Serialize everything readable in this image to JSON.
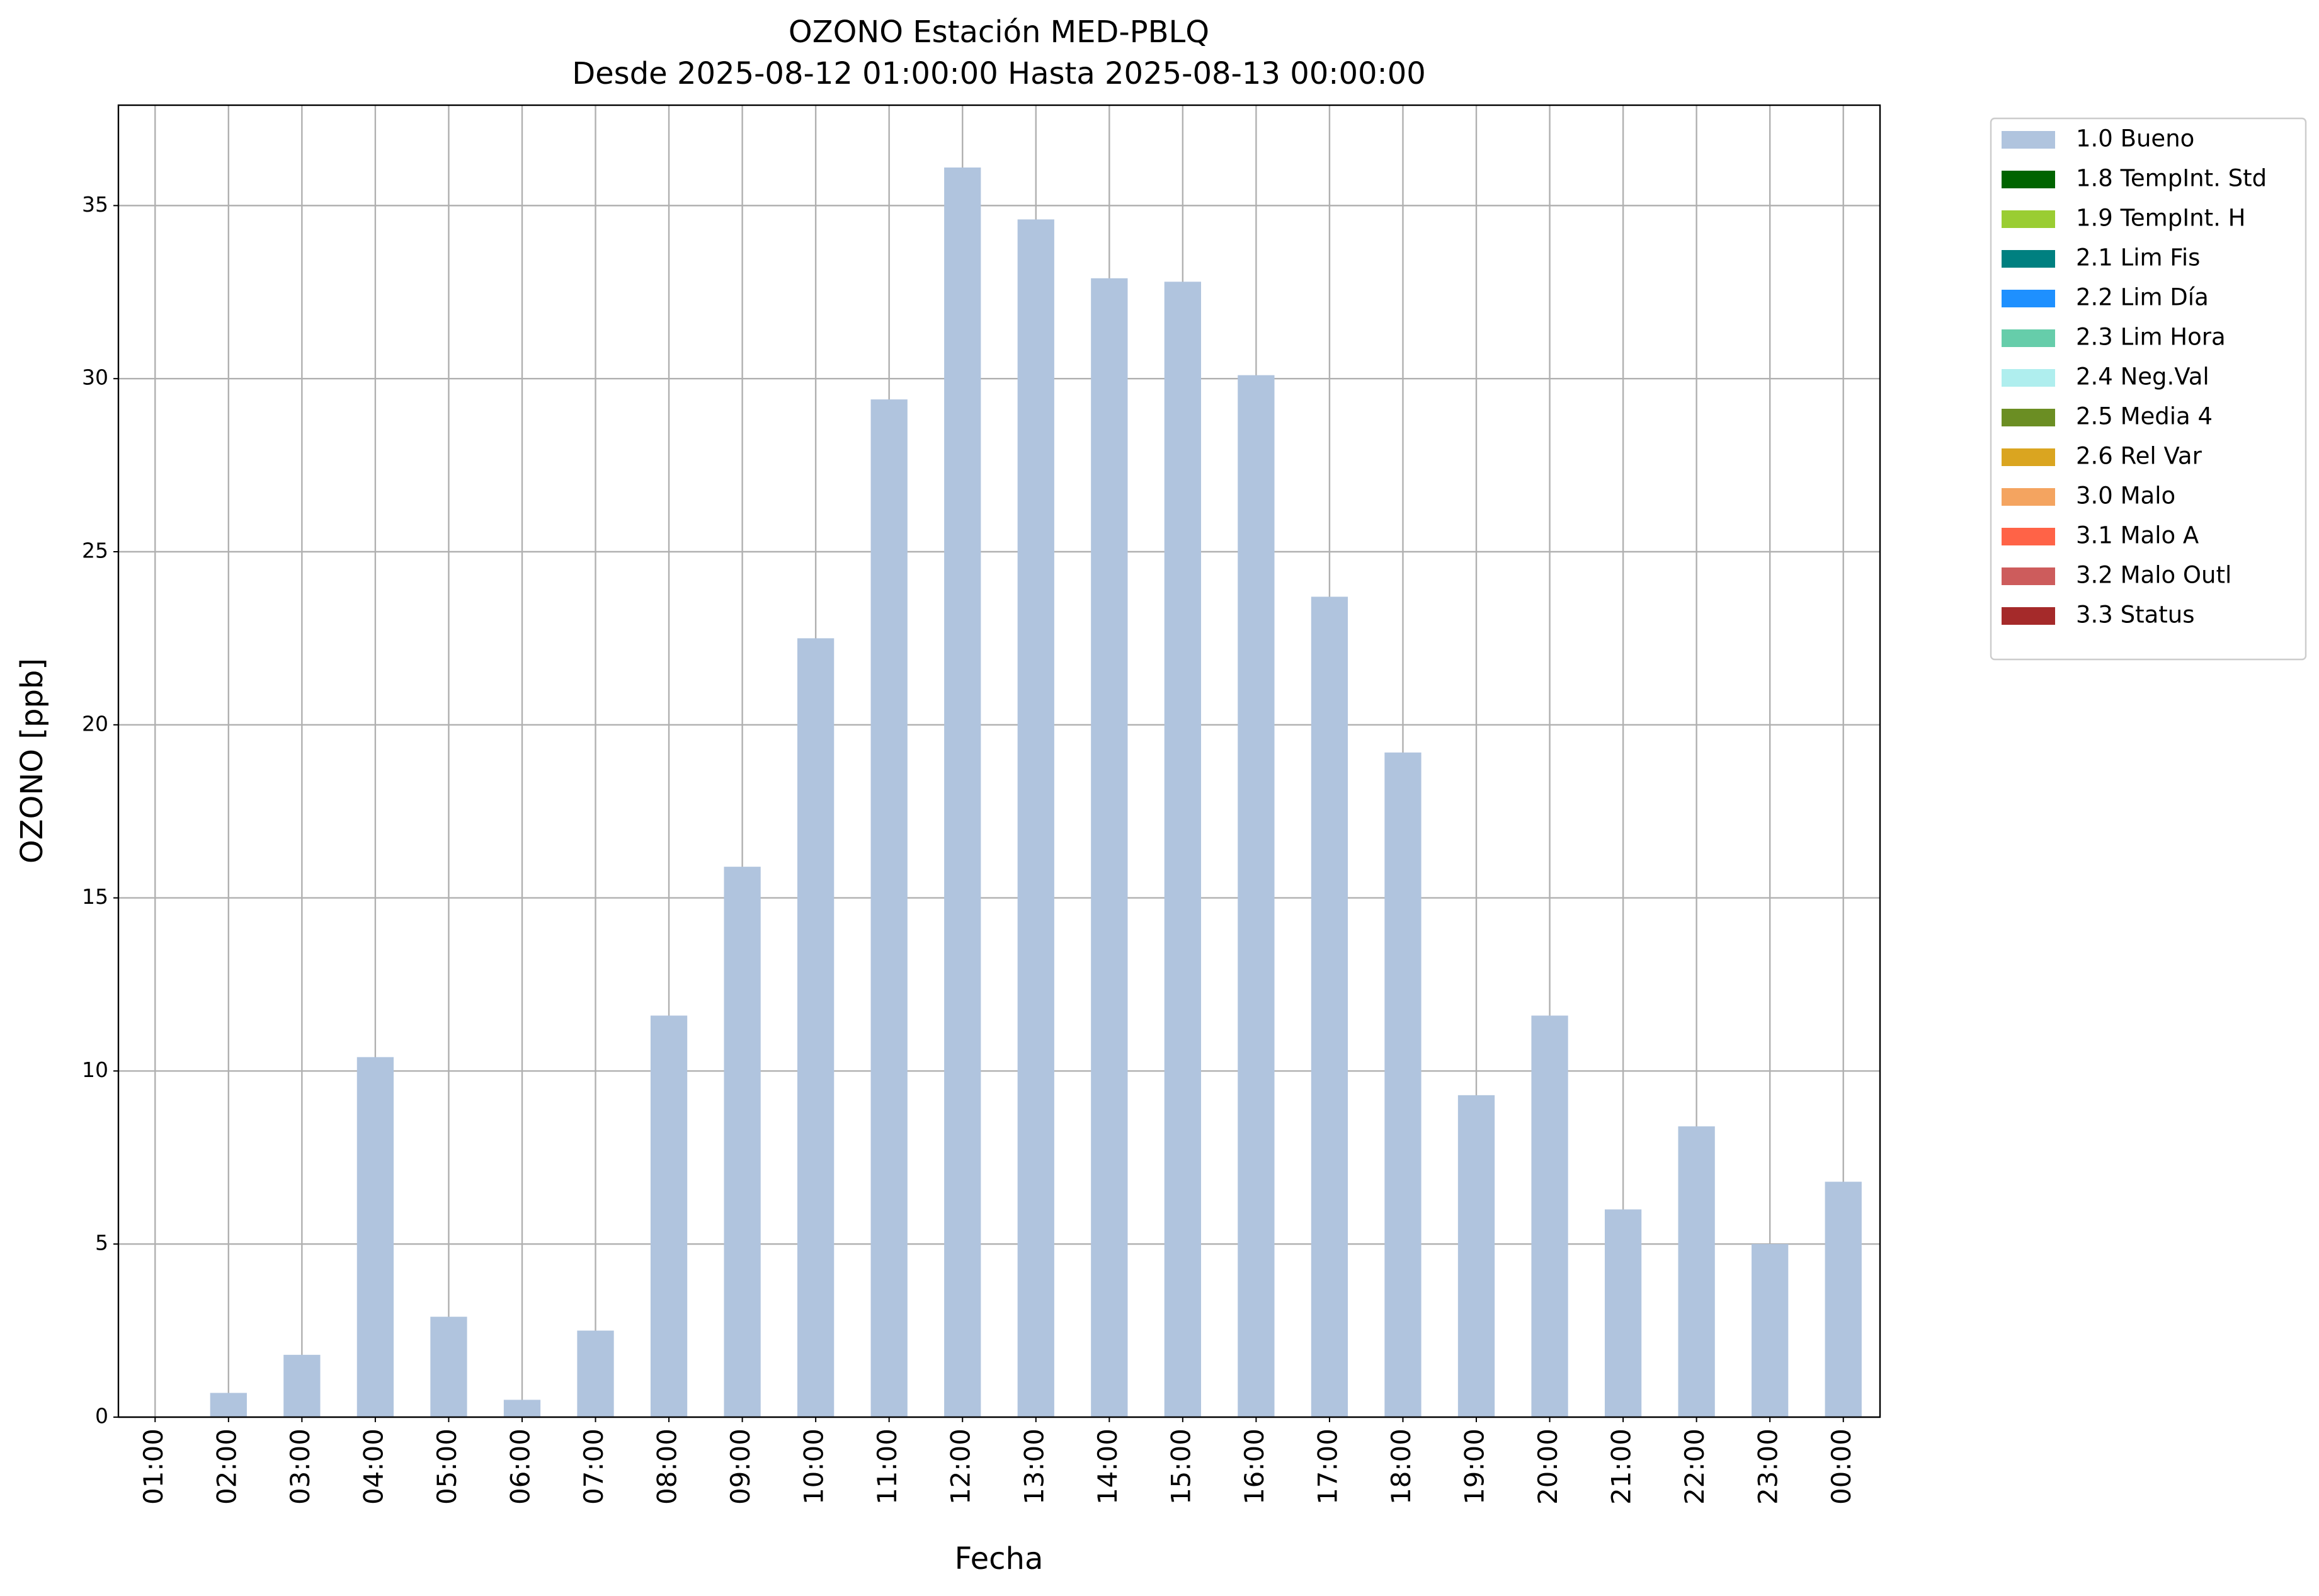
{
  "chart_data": {
    "type": "bar",
    "stacked": true,
    "title": "OZONO Estación MED-PBLQ",
    "subtitle": "Desde 2025-08-12 01:00:00 Hasta 2025-08-13 00:00:00",
    "x_label": "Fecha",
    "y_label": "OZONO [ppb]",
    "categories": [
      "01:00",
      "02:00",
      "03:00",
      "04:00",
      "05:00",
      "06:00",
      "07:00",
      "08:00",
      "09:00",
      "10:00",
      "11:00",
      "12:00",
      "13:00",
      "14:00",
      "15:00",
      "16:00",
      "17:00",
      "18:00",
      "19:00",
      "20:00",
      "21:00",
      "22:00",
      "23:00",
      "00:00"
    ],
    "series": [
      {
        "name": "1.0 Bueno",
        "color": "#b0c4de",
        "values": [
          0,
          0.7,
          1.8,
          10.4,
          2.9,
          0.5,
          2.5,
          11.6,
          15.9,
          22.5,
          29.4,
          36.1,
          34.6,
          32.9,
          32.8,
          30.1,
          23.7,
          19.2,
          9.3,
          11.6,
          6.0,
          8.4,
          5.0,
          6.8
        ]
      },
      {
        "name": "1.8 TempInt. Std",
        "color": "#006400",
        "values": [
          0,
          0,
          0,
          0,
          0,
          0,
          0,
          0,
          0,
          0,
          0,
          0,
          0,
          0,
          0,
          0,
          0,
          0,
          0,
          0,
          0,
          0,
          0,
          0
        ]
      },
      {
        "name": "1.9 TempInt. H",
        "color": "#9acd32",
        "values": [
          0,
          0,
          0,
          0,
          0,
          0,
          0,
          0,
          0,
          0,
          0,
          0,
          0,
          0,
          0,
          0,
          0,
          0,
          0,
          0,
          0,
          0,
          0,
          0
        ]
      },
      {
        "name": "2.1 Lim Fis",
        "color": "#008080",
        "values": [
          0,
          0,
          0,
          0,
          0,
          0,
          0,
          0,
          0,
          0,
          0,
          0,
          0,
          0,
          0,
          0,
          0,
          0,
          0,
          0,
          0,
          0,
          0,
          0
        ]
      },
      {
        "name": "2.2 Lim Día",
        "color": "#1e90ff",
        "values": [
          0,
          0,
          0,
          0,
          0,
          0,
          0,
          0,
          0,
          0,
          0,
          0,
          0,
          0,
          0,
          0,
          0,
          0,
          0,
          0,
          0,
          0,
          0,
          0
        ]
      },
      {
        "name": "2.3 Lim Hora",
        "color": "#66cdaa",
        "values": [
          0,
          0,
          0,
          0,
          0,
          0,
          0,
          0,
          0,
          0,
          0,
          0,
          0,
          0,
          0,
          0,
          0,
          0,
          0,
          0,
          0,
          0,
          0,
          0
        ]
      },
      {
        "name": "2.4 Neg.Val",
        "color": "#afeeee",
        "values": [
          0,
          0,
          0,
          0,
          0,
          0,
          0,
          0,
          0,
          0,
          0,
          0,
          0,
          0,
          0,
          0,
          0,
          0,
          0,
          0,
          0,
          0,
          0,
          0
        ]
      },
      {
        "name": "2.5 Media 4",
        "color": "#6b8e23",
        "values": [
          0,
          0,
          0,
          0,
          0,
          0,
          0,
          0,
          0,
          0,
          0,
          0,
          0,
          0,
          0,
          0,
          0,
          0,
          0,
          0,
          0,
          0,
          0,
          0
        ]
      },
      {
        "name": "2.6 Rel Var",
        "color": "#daa520",
        "values": [
          0,
          0,
          0,
          0,
          0,
          0,
          0,
          0,
          0,
          0,
          0,
          0,
          0,
          0,
          0,
          0,
          0,
          0,
          0,
          0,
          0,
          0,
          0,
          0
        ]
      },
      {
        "name": "3.0 Malo",
        "color": "#f4a460",
        "values": [
          0,
          0,
          0,
          0,
          0,
          0,
          0,
          0,
          0,
          0,
          0,
          0,
          0,
          0,
          0,
          0,
          0,
          0,
          0,
          0,
          0,
          0,
          0,
          0
        ]
      },
      {
        "name": "3.1 Malo A",
        "color": "#ff6347",
        "values": [
          0,
          0,
          0,
          0,
          0,
          0,
          0,
          0,
          0,
          0,
          0,
          0,
          0,
          0,
          0,
          0,
          0,
          0,
          0,
          0,
          0,
          0,
          0,
          0
        ]
      },
      {
        "name": "3.2 Malo Outl",
        "color": "#cd5c5c",
        "values": [
          0,
          0,
          0,
          0,
          0,
          0,
          0,
          0,
          0,
          0,
          0,
          0,
          0,
          0,
          0,
          0,
          0,
          0,
          0,
          0,
          0,
          0,
          0,
          0
        ]
      },
      {
        "name": "3.3 Status",
        "color": "#a52a2a",
        "values": [
          0,
          0,
          0,
          0,
          0,
          0,
          0,
          0,
          0,
          0,
          0,
          0,
          0,
          0,
          0,
          0,
          0,
          0,
          0,
          0,
          0,
          0,
          0,
          0
        ]
      }
    ],
    "ylim": [
      0,
      37.9
    ],
    "yticks": [
      0,
      5,
      10,
      15,
      20,
      25,
      30,
      35
    ],
    "grid": true,
    "legend": "outside-upper-right"
  }
}
